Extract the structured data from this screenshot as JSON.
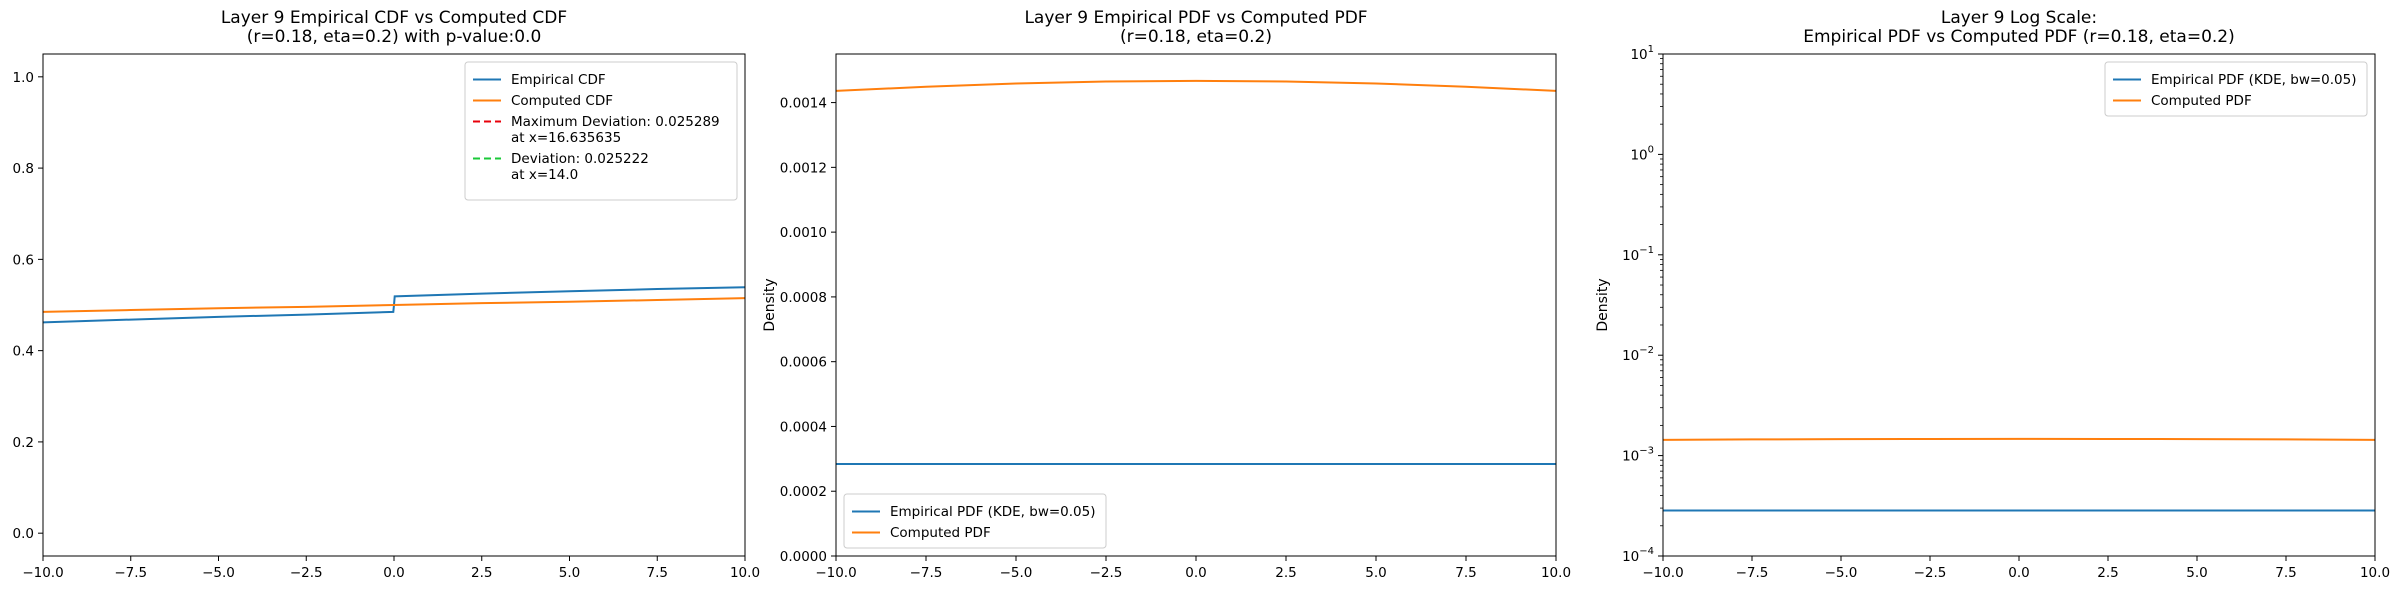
{
  "chart_data": [
    {
      "type": "line",
      "title": [
        "Layer 9 Empirical CDF vs Computed CDF",
        "(r=0.18, eta=0.2) with p-value:0.0"
      ],
      "xlabel": "",
      "ylabel": "",
      "xlim": [
        -10,
        10
      ],
      "ylim": [
        -0.05,
        1.05
      ],
      "yscale": "linear",
      "grid": false,
      "xticks": [
        -10,
        -7.5,
        -5,
        -2.5,
        0,
        2.5,
        5,
        7.5,
        10
      ],
      "xtick_labels": [
        "−10.0",
        "−7.5",
        "−5.0",
        "−2.5",
        "0.0",
        "2.5",
        "5.0",
        "7.5",
        "10.0"
      ],
      "yticks": [
        0,
        0.2,
        0.4,
        0.6,
        0.8,
        1.0
      ],
      "ytick_labels": [
        "0.0",
        "0.2",
        "0.4",
        "0.6",
        "0.8",
        "1.0"
      ],
      "legend_position": "upper right",
      "series": [
        {
          "name": "Empirical CDF",
          "color": "#1f77b4",
          "style": "solid",
          "x": [
            -10,
            -7.5,
            -5,
            -2.5,
            -0.02,
            0,
            0.02,
            2.5,
            5,
            7.5,
            10
          ],
          "y": [
            0.462,
            0.468,
            0.474,
            0.479,
            0.485,
            0.5,
            0.519,
            0.525,
            0.53,
            0.535,
            0.539
          ]
        },
        {
          "name": "Computed CDF",
          "color": "#ff7f0e",
          "style": "solid",
          "x": [
            -10,
            -7.5,
            -5,
            -2.5,
            0,
            2.5,
            5,
            7.5,
            10
          ],
          "y": [
            0.485,
            0.489,
            0.493,
            0.496,
            0.5,
            0.504,
            0.507,
            0.511,
            0.515
          ]
        },
        {
          "name": "Maximum Deviation: 0.025289\nat x=16.635635",
          "color": "#e8000b",
          "style": "dashed",
          "x": [],
          "y": []
        },
        {
          "name": "Deviation: 0.025222\nat x=14.0",
          "color": "#1ac938",
          "style": "dashed",
          "x": [],
          "y": []
        }
      ]
    },
    {
      "type": "line",
      "title": [
        "Layer 9 Empirical PDF vs Computed PDF",
        "(r=0.18, eta=0.2)"
      ],
      "xlabel": "",
      "ylabel": "Density",
      "xlim": [
        -10,
        10
      ],
      "ylim": [
        0,
        0.00155
      ],
      "yscale": "linear",
      "grid": false,
      "xticks": [
        -10,
        -7.5,
        -5,
        -2.5,
        0,
        2.5,
        5,
        7.5,
        10
      ],
      "xtick_labels": [
        "−10.0",
        "−7.5",
        "−5.0",
        "−2.5",
        "0.0",
        "2.5",
        "5.0",
        "7.5",
        "10.0"
      ],
      "yticks": [
        0,
        0.0002,
        0.0004,
        0.0006,
        0.0008,
        0.001,
        0.0012,
        0.0014
      ],
      "ytick_labels": [
        "0.0000",
        "0.0002",
        "0.0004",
        "0.0006",
        "0.0008",
        "0.0010",
        "0.0012",
        "0.0014"
      ],
      "legend_position": "lower left",
      "series": [
        {
          "name": "Empirical PDF (KDE, bw=0.05)",
          "color": "#1f77b4",
          "style": "solid",
          "x": [
            -10,
            10
          ],
          "y": [
            0.000284,
            0.000284
          ]
        },
        {
          "name": "Computed PDF",
          "color": "#ff7f0e",
          "style": "solid",
          "x": [
            -10,
            -7.5,
            -5,
            -2.5,
            0,
            2.5,
            5,
            7.5,
            10
          ],
          "y": [
            0.001436,
            0.001449,
            0.001459,
            0.001465,
            0.001467,
            0.001465,
            0.001459,
            0.001449,
            0.001436
          ]
        }
      ]
    },
    {
      "type": "line",
      "title": [
        "Layer 9 Log Scale:",
        "Empirical PDF vs Computed PDF (r=0.18, eta=0.2)"
      ],
      "xlabel": "",
      "ylabel": "Density",
      "xlim": [
        -10,
        10
      ],
      "ylim": [
        0.0001,
        10
      ],
      "yscale": "log",
      "grid": false,
      "xticks": [
        -10,
        -7.5,
        -5,
        -2.5,
        0,
        2.5,
        5,
        7.5,
        10
      ],
      "xtick_labels": [
        "−10.0",
        "−7.5",
        "−5.0",
        "−2.5",
        "0.0",
        "2.5",
        "5.0",
        "7.5",
        "10.0"
      ],
      "yticks": [
        0.0001,
        0.001,
        0.01,
        0.1,
        1,
        10
      ],
      "ytick_labels": [
        [
          "10",
          "−4"
        ],
        [
          "10",
          "−3"
        ],
        [
          "10",
          "−2"
        ],
        [
          "10",
          "−1"
        ],
        [
          "10",
          "0"
        ],
        [
          "10",
          "1"
        ]
      ],
      "legend_position": "upper right",
      "series": [
        {
          "name": "Empirical PDF (KDE, bw=0.05)",
          "color": "#1f77b4",
          "style": "solid",
          "x": [
            -10,
            10
          ],
          "y": [
            0.000284,
            0.000284
          ]
        },
        {
          "name": "Computed PDF",
          "color": "#ff7f0e",
          "style": "solid",
          "x": [
            -10,
            -7.5,
            -5,
            -2.5,
            0,
            2.5,
            5,
            7.5,
            10
          ],
          "y": [
            0.001436,
            0.001449,
            0.001459,
            0.001465,
            0.001467,
            0.001465,
            0.001459,
            0.001449,
            0.001436
          ]
        }
      ]
    }
  ]
}
